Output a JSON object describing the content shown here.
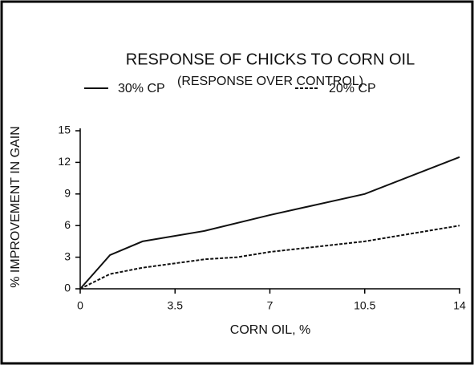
{
  "chart_data": {
    "type": "line",
    "title": "RESPONSE OF CHICKS TO CORN OIL",
    "subtitle": "(RESPONSE OVER CONTROL)",
    "x_label": "CORN OIL, %",
    "y_label": "% IMPROVEMENT IN GAIN",
    "series": [
      {
        "name": "30% CP",
        "color": "#111111",
        "style": "solid",
        "x": [
          0,
          1.1,
          2.3,
          4.6,
          7,
          10.5,
          14
        ],
        "values": [
          0,
          3.2,
          4.5,
          5.5,
          7,
          9,
          12.5
        ]
      },
      {
        "name": "20% CP",
        "color": "#111111",
        "style": "dashed",
        "x": [
          0,
          1.1,
          2.3,
          4.6,
          5.8,
          7,
          10.5,
          14
        ],
        "values": [
          0,
          1.4,
          2,
          2.8,
          3,
          3.5,
          4.5,
          6
        ]
      }
    ],
    "xlim": [
      0,
      14
    ],
    "xticks": [
      0,
      3.5,
      7,
      10.5,
      14
    ],
    "ylim": [
      0,
      15
    ],
    "yticks": [
      0,
      3,
      6,
      9,
      12,
      15
    ],
    "grid": false
  }
}
